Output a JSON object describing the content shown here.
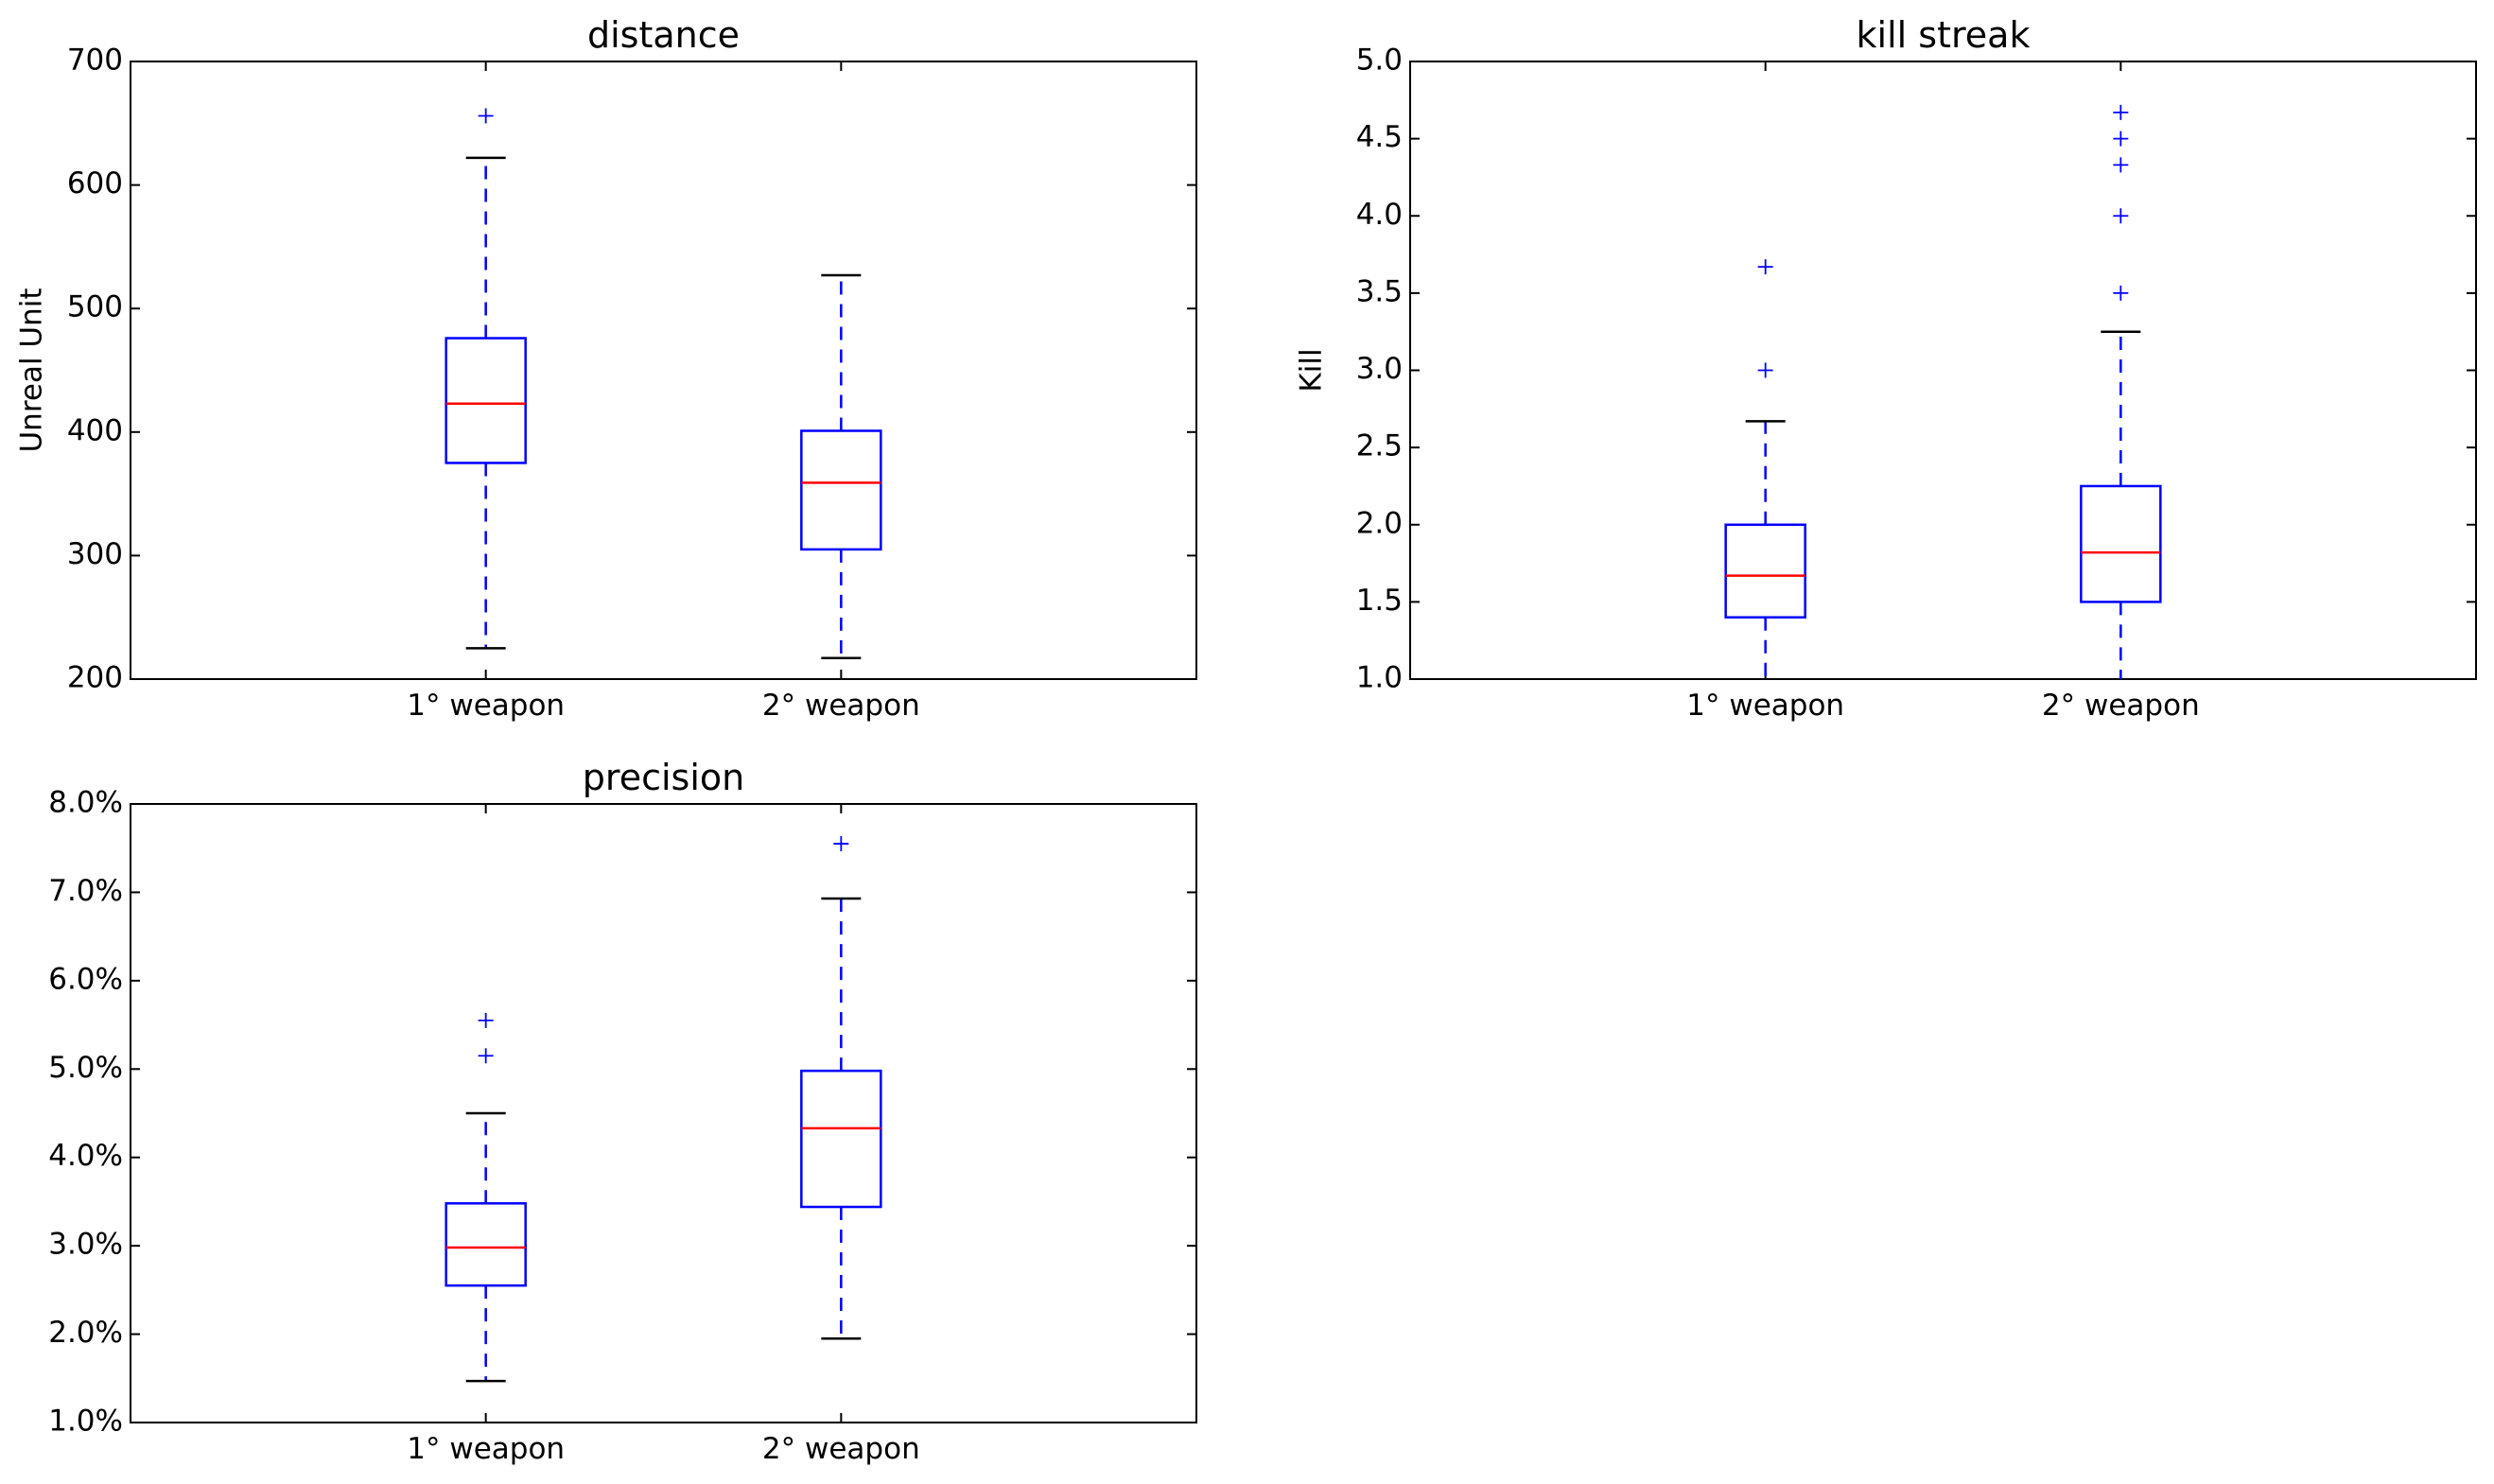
{
  "colors": {
    "box": "#0000ff",
    "median": "#ff0000",
    "whisker": "#0000ff",
    "cap": "#000000",
    "flier": "#0000ff",
    "frame": "#000000"
  },
  "chart_data": [
    {
      "type": "box",
      "title": "distance",
      "ylabel": "Unreal Unit",
      "xlabel": "",
      "ylim": [
        200,
        700
      ],
      "yticks": [
        200,
        300,
        400,
        500,
        600,
        700
      ],
      "ytick_labels": [
        "200",
        "300",
        "400",
        "500",
        "600",
        "700"
      ],
      "categories": [
        "1° weapon",
        "2° weapon"
      ],
      "boxes": [
        {
          "whisker_low": 225,
          "q1": 375,
          "median": 423,
          "q3": 476,
          "whisker_high": 622,
          "fliers": [
            656
          ]
        },
        {
          "whisker_low": 217,
          "q1": 305,
          "median": 359,
          "q3": 401,
          "whisker_high": 527,
          "fliers": []
        }
      ]
    },
    {
      "type": "box",
      "title": "kill streak",
      "ylabel": "Kill",
      "xlabel": "",
      "ylim": [
        1.0,
        5.0
      ],
      "yticks": [
        1.0,
        1.5,
        2.0,
        2.5,
        3.0,
        3.5,
        4.0,
        4.5,
        5.0
      ],
      "ytick_labels": [
        "1.0",
        "1.5",
        "2.0",
        "2.5",
        "3.0",
        "3.5",
        "4.0",
        "4.5",
        "5.0"
      ],
      "categories": [
        "1° weapon",
        "2° weapon"
      ],
      "boxes": [
        {
          "whisker_low": 1.0,
          "q1": 1.4,
          "median": 1.67,
          "q3": 2.0,
          "whisker_high": 2.67,
          "fliers": [
            3.0,
            3.67
          ]
        },
        {
          "whisker_low": 1.0,
          "q1": 1.5,
          "median": 1.82,
          "q3": 2.25,
          "whisker_high": 3.25,
          "fliers": [
            3.5,
            4.0,
            4.33,
            4.5,
            4.67
          ]
        }
      ]
    },
    {
      "type": "box",
      "title": "precision",
      "ylabel": "",
      "xlabel": "",
      "ylim": [
        1.0,
        8.0
      ],
      "yticks": [
        1.0,
        2.0,
        3.0,
        4.0,
        5.0,
        6.0,
        7.0,
        8.0
      ],
      "ytick_labels": [
        "1.0%",
        "2.0%",
        "3.0%",
        "4.0%",
        "5.0%",
        "6.0%",
        "7.0%",
        "8.0%"
      ],
      "categories": [
        "1° weapon",
        "2° weapon"
      ],
      "boxes": [
        {
          "whisker_low": 1.47,
          "q1": 2.55,
          "median": 2.98,
          "q3": 3.48,
          "whisker_high": 4.5,
          "fliers": [
            5.15,
            5.55
          ]
        },
        {
          "whisker_low": 1.95,
          "q1": 3.44,
          "median": 4.33,
          "q3": 4.98,
          "whisker_high": 6.93,
          "fliers": [
            7.55
          ]
        }
      ]
    }
  ]
}
